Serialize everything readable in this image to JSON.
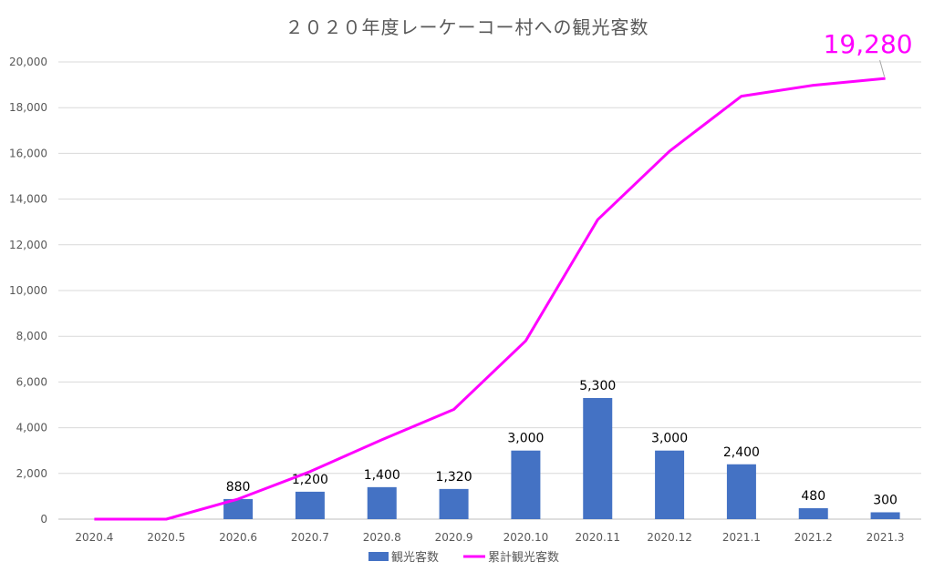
{
  "chart_data": {
    "type": "bar",
    "title": "２０２０年度レーケーコー村への観光客数",
    "categories": [
      "2020.4",
      "2020.5",
      "2020.6",
      "2020.7",
      "2020.8",
      "2020.9",
      "2020.10",
      "2020.11",
      "2020.12",
      "2021.1",
      "2021.2",
      "2021.3"
    ],
    "ylim": [
      0,
      20000
    ],
    "yticks": [
      0,
      2000,
      4000,
      6000,
      8000,
      10000,
      12000,
      14000,
      16000,
      18000,
      20000
    ],
    "ytick_labels": [
      "0",
      "2,000",
      "4,000",
      "6,000",
      "8,000",
      "10,000",
      "12,000",
      "14,000",
      "16,000",
      "18,000",
      "20,000"
    ],
    "grid": true,
    "legend_position": "bottom",
    "series": [
      {
        "name": "観光客数",
        "type": "bar",
        "color": "#4472C4",
        "values": [
          0,
          0,
          880,
          1200,
          1400,
          1320,
          3000,
          5300,
          3000,
          2400,
          480,
          300
        ],
        "data_labels": [
          "",
          "",
          "880",
          "1,200",
          "1,400",
          "1,320",
          "3,000",
          "5,300",
          "3,000",
          "2,400",
          "480",
          "300"
        ]
      },
      {
        "name": "累計観光客数",
        "type": "line",
        "color": "#FF00FF",
        "values": [
          0,
          0,
          880,
          2080,
          3480,
          4800,
          7800,
          13100,
          16100,
          18500,
          18980,
          19280
        ]
      }
    ],
    "annotation": {
      "text": "19,280",
      "color": "#FF00FF",
      "category": "2021.3"
    }
  }
}
